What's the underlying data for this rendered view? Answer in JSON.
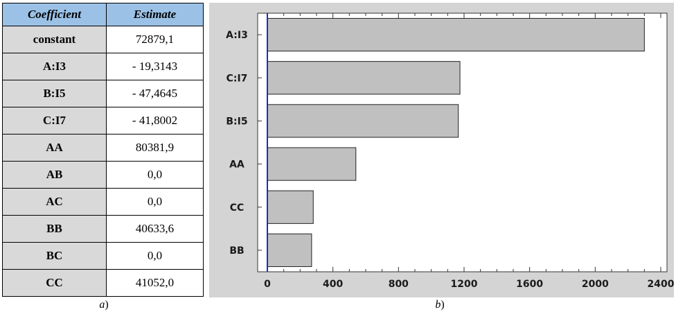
{
  "table": {
    "header": {
      "coefficient": "Coefficient",
      "estimate": "Estimate"
    },
    "rows": [
      {
        "coefficient": "constant",
        "estimate": "72879,1"
      },
      {
        "coefficient": "A:I3",
        "estimate": "- 19,3143"
      },
      {
        "coefficient": "B:I5",
        "estimate": "- 47,4645"
      },
      {
        "coefficient": "C:I7",
        "estimate": "- 41,8002"
      },
      {
        "coefficient": "AA",
        "estimate": "80381,9"
      },
      {
        "coefficient": "AB",
        "estimate": "0,0"
      },
      {
        "coefficient": "AC",
        "estimate": "0,0"
      },
      {
        "coefficient": "BB",
        "estimate": "40633,6"
      },
      {
        "coefficient": "BC",
        "estimate": "0,0"
      },
      {
        "coefficient": "CC",
        "estimate": "41052,0"
      }
    ],
    "header_color": "#9bc2e6",
    "name_cell_color": "#d9d9d9"
  },
  "captions": {
    "a": "a)",
    "b": "b)"
  },
  "chart_data": {
    "type": "bar",
    "orientation": "horizontal",
    "categories": [
      "A:I3",
      "C:I7",
      "B:I5",
      "AA",
      "CC",
      "BB"
    ],
    "values": [
      2300,
      1175,
      1165,
      540,
      280,
      270
    ],
    "xlim": [
      0,
      2400
    ],
    "x_ticks": [
      0,
      400,
      800,
      1200,
      1600,
      2000,
      2400
    ],
    "reference_line": 0,
    "grid": false,
    "title": "",
    "xlabel": "",
    "ylabel": "",
    "bar_color": "#c0c0c0",
    "reference_line_color": "#1a2fb8",
    "background_color": "#d4d4d4",
    "plot_background_color": "#ffffff"
  }
}
